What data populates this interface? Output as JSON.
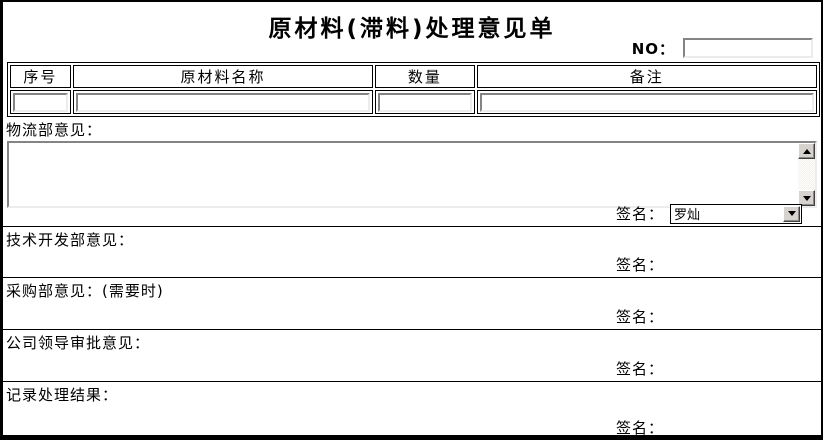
{
  "title": "原材料(滞料)处理意见单",
  "no_field": {
    "label": "NO：",
    "value": ""
  },
  "materials_table": {
    "headers": [
      "序号",
      "原材料名称",
      "数量",
      "备注"
    ],
    "inputs": {
      "serial": "",
      "name": "",
      "quantity": "",
      "remark": ""
    }
  },
  "sections": {
    "logistics": {
      "title": "物流部意见：",
      "comment": "",
      "sign_label": "签名：",
      "sign_name": "罗灿"
    },
    "tech": {
      "title": "技术开发部意见：",
      "sign_label": "签名："
    },
    "purchase": {
      "title": "采购部意见：(需要时)",
      "sign_label": "签名："
    },
    "leader": {
      "title": "公司领导审批意见：",
      "sign_label": "签名："
    },
    "record": {
      "title": "记录处理结果：",
      "sign_label": "签名："
    }
  },
  "icons": {
    "scroll_up": "triangle-up",
    "scroll_down": "triangle-down",
    "dropdown_arrow": "triangle-down"
  },
  "colors": {
    "frame_border": "#000000",
    "input_border_dark": "#848484",
    "button_face": "#d6d3ce",
    "background": "#ffffff",
    "text": "#000000"
  }
}
